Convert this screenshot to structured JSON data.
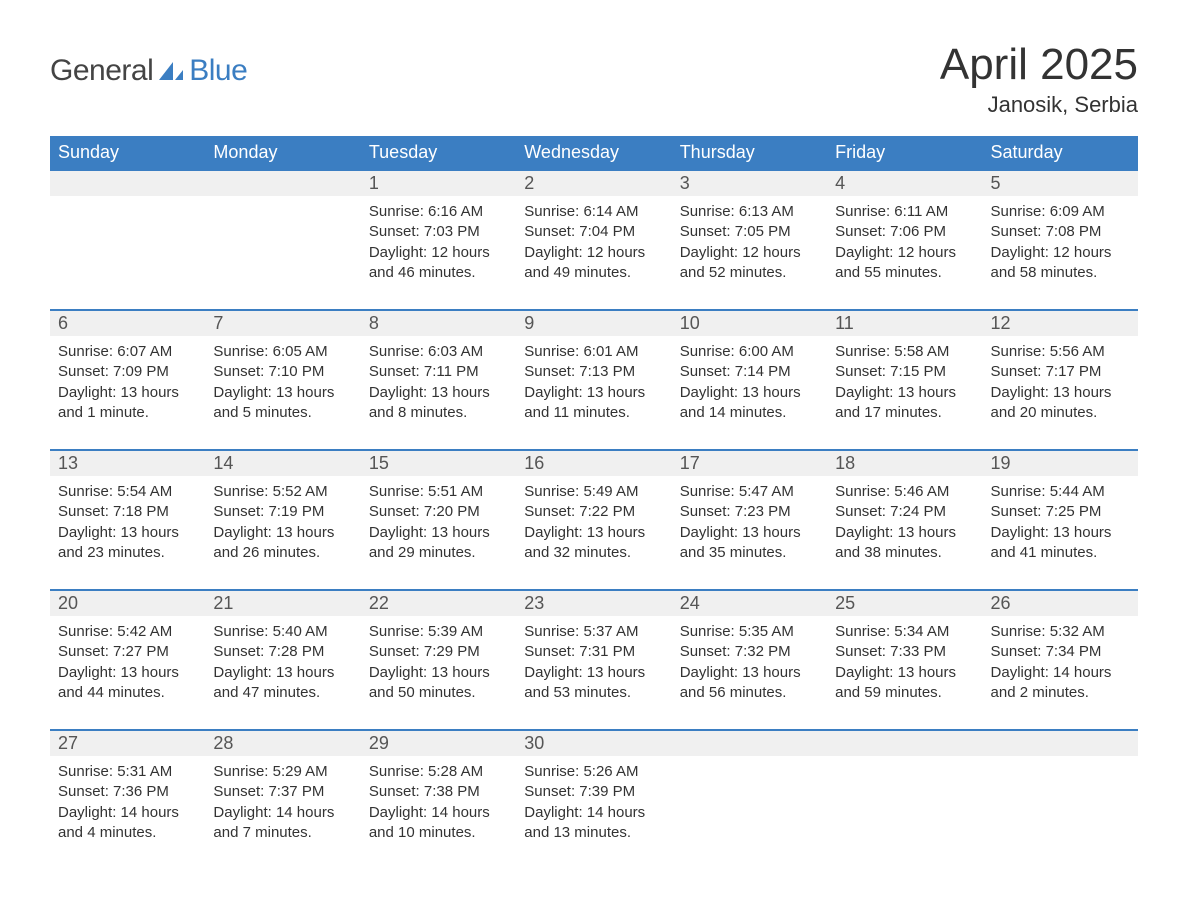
{
  "logo": {
    "general": "General",
    "blue": "Blue"
  },
  "title": "April 2025",
  "location": "Janosik, Serbia",
  "colors": {
    "header_bg": "#3b7ec2",
    "header_fg": "#ffffff",
    "daynum_bg": "#f0f0f0",
    "daynum_border": "#3b7ec2",
    "body_bg": "#ffffff",
    "text": "#333333"
  },
  "day_headers": [
    "Sunday",
    "Monday",
    "Tuesday",
    "Wednesday",
    "Thursday",
    "Friday",
    "Saturday"
  ],
  "weeks": [
    [
      null,
      null,
      {
        "n": "1",
        "sunrise": "Sunrise: 6:16 AM",
        "sunset": "Sunset: 7:03 PM",
        "daylight": "Daylight: 12 hours and 46 minutes."
      },
      {
        "n": "2",
        "sunrise": "Sunrise: 6:14 AM",
        "sunset": "Sunset: 7:04 PM",
        "daylight": "Daylight: 12 hours and 49 minutes."
      },
      {
        "n": "3",
        "sunrise": "Sunrise: 6:13 AM",
        "sunset": "Sunset: 7:05 PM",
        "daylight": "Daylight: 12 hours and 52 minutes."
      },
      {
        "n": "4",
        "sunrise": "Sunrise: 6:11 AM",
        "sunset": "Sunset: 7:06 PM",
        "daylight": "Daylight: 12 hours and 55 minutes."
      },
      {
        "n": "5",
        "sunrise": "Sunrise: 6:09 AM",
        "sunset": "Sunset: 7:08 PM",
        "daylight": "Daylight: 12 hours and 58 minutes."
      }
    ],
    [
      {
        "n": "6",
        "sunrise": "Sunrise: 6:07 AM",
        "sunset": "Sunset: 7:09 PM",
        "daylight": "Daylight: 13 hours and 1 minute."
      },
      {
        "n": "7",
        "sunrise": "Sunrise: 6:05 AM",
        "sunset": "Sunset: 7:10 PM",
        "daylight": "Daylight: 13 hours and 5 minutes."
      },
      {
        "n": "8",
        "sunrise": "Sunrise: 6:03 AM",
        "sunset": "Sunset: 7:11 PM",
        "daylight": "Daylight: 13 hours and 8 minutes."
      },
      {
        "n": "9",
        "sunrise": "Sunrise: 6:01 AM",
        "sunset": "Sunset: 7:13 PM",
        "daylight": "Daylight: 13 hours and 11 minutes."
      },
      {
        "n": "10",
        "sunrise": "Sunrise: 6:00 AM",
        "sunset": "Sunset: 7:14 PM",
        "daylight": "Daylight: 13 hours and 14 minutes."
      },
      {
        "n": "11",
        "sunrise": "Sunrise: 5:58 AM",
        "sunset": "Sunset: 7:15 PM",
        "daylight": "Daylight: 13 hours and 17 minutes."
      },
      {
        "n": "12",
        "sunrise": "Sunrise: 5:56 AM",
        "sunset": "Sunset: 7:17 PM",
        "daylight": "Daylight: 13 hours and 20 minutes."
      }
    ],
    [
      {
        "n": "13",
        "sunrise": "Sunrise: 5:54 AM",
        "sunset": "Sunset: 7:18 PM",
        "daylight": "Daylight: 13 hours and 23 minutes."
      },
      {
        "n": "14",
        "sunrise": "Sunrise: 5:52 AM",
        "sunset": "Sunset: 7:19 PM",
        "daylight": "Daylight: 13 hours and 26 minutes."
      },
      {
        "n": "15",
        "sunrise": "Sunrise: 5:51 AM",
        "sunset": "Sunset: 7:20 PM",
        "daylight": "Daylight: 13 hours and 29 minutes."
      },
      {
        "n": "16",
        "sunrise": "Sunrise: 5:49 AM",
        "sunset": "Sunset: 7:22 PM",
        "daylight": "Daylight: 13 hours and 32 minutes."
      },
      {
        "n": "17",
        "sunrise": "Sunrise: 5:47 AM",
        "sunset": "Sunset: 7:23 PM",
        "daylight": "Daylight: 13 hours and 35 minutes."
      },
      {
        "n": "18",
        "sunrise": "Sunrise: 5:46 AM",
        "sunset": "Sunset: 7:24 PM",
        "daylight": "Daylight: 13 hours and 38 minutes."
      },
      {
        "n": "19",
        "sunrise": "Sunrise: 5:44 AM",
        "sunset": "Sunset: 7:25 PM",
        "daylight": "Daylight: 13 hours and 41 minutes."
      }
    ],
    [
      {
        "n": "20",
        "sunrise": "Sunrise: 5:42 AM",
        "sunset": "Sunset: 7:27 PM",
        "daylight": "Daylight: 13 hours and 44 minutes."
      },
      {
        "n": "21",
        "sunrise": "Sunrise: 5:40 AM",
        "sunset": "Sunset: 7:28 PM",
        "daylight": "Daylight: 13 hours and 47 minutes."
      },
      {
        "n": "22",
        "sunrise": "Sunrise: 5:39 AM",
        "sunset": "Sunset: 7:29 PM",
        "daylight": "Daylight: 13 hours and 50 minutes."
      },
      {
        "n": "23",
        "sunrise": "Sunrise: 5:37 AM",
        "sunset": "Sunset: 7:31 PM",
        "daylight": "Daylight: 13 hours and 53 minutes."
      },
      {
        "n": "24",
        "sunrise": "Sunrise: 5:35 AM",
        "sunset": "Sunset: 7:32 PM",
        "daylight": "Daylight: 13 hours and 56 minutes."
      },
      {
        "n": "25",
        "sunrise": "Sunrise: 5:34 AM",
        "sunset": "Sunset: 7:33 PM",
        "daylight": "Daylight: 13 hours and 59 minutes."
      },
      {
        "n": "26",
        "sunrise": "Sunrise: 5:32 AM",
        "sunset": "Sunset: 7:34 PM",
        "daylight": "Daylight: 14 hours and 2 minutes."
      }
    ],
    [
      {
        "n": "27",
        "sunrise": "Sunrise: 5:31 AM",
        "sunset": "Sunset: 7:36 PM",
        "daylight": "Daylight: 14 hours and 4 minutes."
      },
      {
        "n": "28",
        "sunrise": "Sunrise: 5:29 AM",
        "sunset": "Sunset: 7:37 PM",
        "daylight": "Daylight: 14 hours and 7 minutes."
      },
      {
        "n": "29",
        "sunrise": "Sunrise: 5:28 AM",
        "sunset": "Sunset: 7:38 PM",
        "daylight": "Daylight: 14 hours and 10 minutes."
      },
      {
        "n": "30",
        "sunrise": "Sunrise: 5:26 AM",
        "sunset": "Sunset: 7:39 PM",
        "daylight": "Daylight: 14 hours and 13 minutes."
      },
      null,
      null,
      null
    ]
  ]
}
